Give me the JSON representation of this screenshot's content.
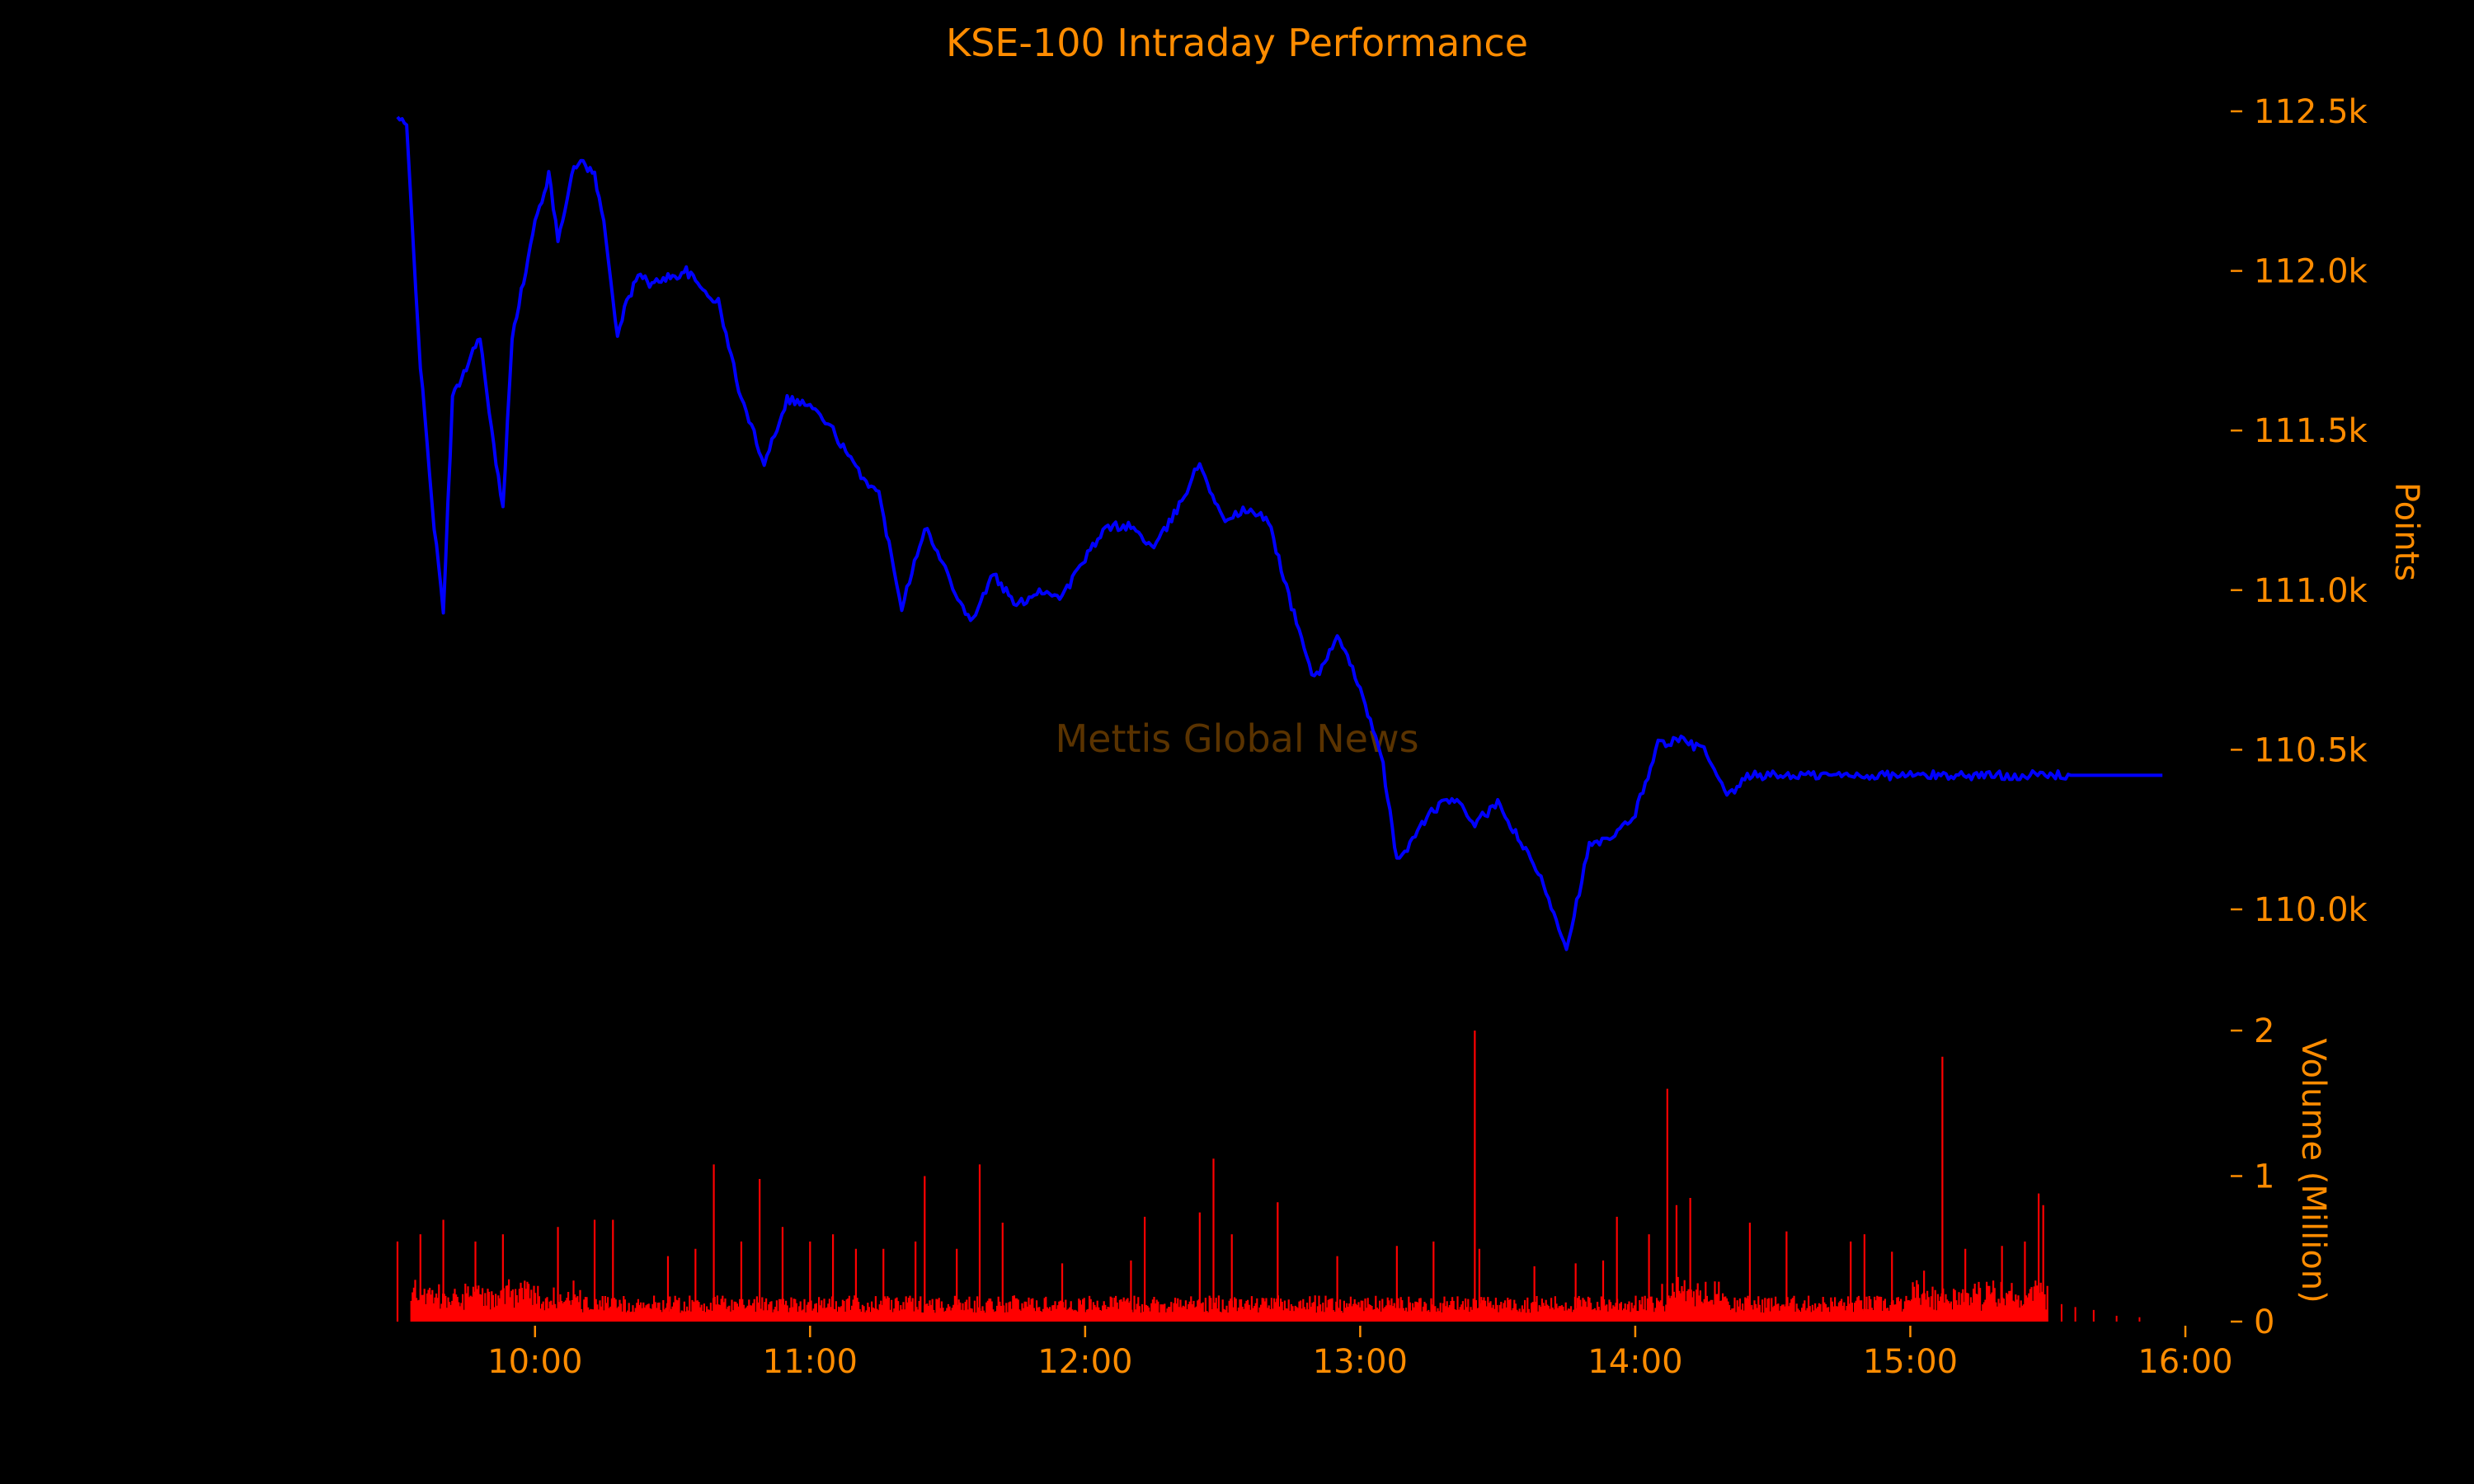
{
  "chart_data": {
    "type": "line",
    "title": "KSE-100 Intraday Performance",
    "watermark": "Mettis Global News",
    "colors": {
      "text": "#ff8c00",
      "price_line": "#0000ff",
      "volume_bars": "#ff0000",
      "background": "#000000",
      "watermark": "#5a3300"
    },
    "xaxis": {
      "label": "",
      "range": [
        "09:30",
        "16:00"
      ],
      "ticks": [
        "10:00",
        "11:00",
        "12:00",
        "13:00",
        "14:00",
        "15:00",
        "16:00"
      ]
    },
    "price": {
      "ylabel": "Points",
      "ylim": [
        109850,
        112600
      ],
      "ticks": [
        112500,
        112000,
        111500,
        111000,
        110500,
        110000
      ],
      "tick_labels": [
        "112.5k",
        "112.0k",
        "111.5k",
        "111.0k",
        "110.5k",
        "110.0k"
      ],
      "axis_side": "right",
      "series": {
        "x": [
          "09:30",
          "09:32",
          "09:35",
          "09:38",
          "09:40",
          "09:42",
          "09:45",
          "09:48",
          "09:50",
          "09:53",
          "09:55",
          "09:58",
          "10:00",
          "10:03",
          "10:05",
          "10:08",
          "10:10",
          "10:13",
          "10:15",
          "10:18",
          "10:20",
          "10:23",
          "10:25",
          "10:28",
          "10:30",
          "10:33",
          "10:36",
          "10:40",
          "10:45",
          "10:50",
          "10:55",
          "11:00",
          "11:05",
          "11:10",
          "11:15",
          "11:20",
          "11:25",
          "11:30",
          "11:35",
          "11:40",
          "11:45",
          "11:50",
          "11:55",
          "12:00",
          "12:05",
          "12:10",
          "12:15",
          "12:20",
          "12:25",
          "12:30",
          "12:35",
          "12:40",
          "12:45",
          "12:50",
          "12:55",
          "13:00",
          "13:05",
          "13:08",
          "13:12",
          "13:15",
          "13:20",
          "13:25",
          "13:30",
          "13:35",
          "13:40",
          "13:45",
          "13:50",
          "13:55",
          "14:00",
          "14:05",
          "14:10",
          "14:15",
          "14:20",
          "14:25",
          "14:30",
          "14:35",
          "14:40",
          "14:45",
          "14:50",
          "14:55",
          "15:00",
          "15:05",
          "15:10",
          "15:15",
          "15:20",
          "15:25",
          "15:30",
          "15:35",
          "15:40",
          "15:45",
          "15:50",
          "15:55"
        ],
        "y": [
          112480,
          112450,
          111700,
          111200,
          110930,
          111600,
          111700,
          111800,
          111550,
          111250,
          111800,
          112000,
          112150,
          112300,
          112100,
          112300,
          112350,
          112300,
          112150,
          111800,
          111900,
          112000,
          111950,
          111980,
          111980,
          112000,
          111950,
          111900,
          111600,
          111400,
          111600,
          111580,
          111500,
          111380,
          111300,
          110950,
          111200,
          111050,
          110900,
          111050,
          110950,
          111000,
          110980,
          111100,
          111200,
          111200,
          111130,
          111250,
          111400,
          111220,
          111250,
          111220,
          110950,
          110720,
          110850,
          110700,
          110450,
          110150,
          110230,
          110300,
          110350,
          110270,
          110330,
          110210,
          110080,
          109880,
          110200,
          110220,
          110300,
          110520,
          110530,
          110500,
          110350,
          110420,
          110420,
          110420,
          110420,
          110420,
          110420,
          110420,
          110420,
          110420,
          110420,
          110420,
          110420,
          110420,
          110420,
          110420,
          110420,
          110420,
          110420,
          110420
        ]
      }
    },
    "volume": {
      "ylabel": "Volume (Million)",
      "ylim": [
        0,
        2
      ],
      "ticks": [
        0,
        1,
        2
      ],
      "tick_labels": [
        "0",
        "1",
        "2"
      ],
      "axis_side": "right",
      "spikes": [
        {
          "x": "09:30",
          "v": 0.55
        },
        {
          "x": "09:35",
          "v": 0.6
        },
        {
          "x": "09:40",
          "v": 0.7
        },
        {
          "x": "09:47",
          "v": 0.55
        },
        {
          "x": "09:53",
          "v": 0.6
        },
        {
          "x": "10:05",
          "v": 0.65
        },
        {
          "x": "10:13",
          "v": 0.7
        },
        {
          "x": "10:17",
          "v": 0.7
        },
        {
          "x": "10:29",
          "v": 0.45
        },
        {
          "x": "10:35",
          "v": 0.5
        },
        {
          "x": "10:39",
          "v": 1.08
        },
        {
          "x": "10:45",
          "v": 0.55
        },
        {
          "x": "10:49",
          "v": 0.98
        },
        {
          "x": "10:54",
          "v": 0.65
        },
        {
          "x": "11:00",
          "v": 0.55
        },
        {
          "x": "11:05",
          "v": 0.6
        },
        {
          "x": "11:10",
          "v": 0.5
        },
        {
          "x": "11:16",
          "v": 0.5
        },
        {
          "x": "11:23",
          "v": 0.55
        },
        {
          "x": "11:25",
          "v": 1.0
        },
        {
          "x": "11:32",
          "v": 0.5
        },
        {
          "x": "11:37",
          "v": 1.08
        },
        {
          "x": "11:42",
          "v": 0.68
        },
        {
          "x": "11:55",
          "v": 0.4
        },
        {
          "x": "12:10",
          "v": 0.42
        },
        {
          "x": "12:13",
          "v": 0.72
        },
        {
          "x": "12:25",
          "v": 0.75
        },
        {
          "x": "12:28",
          "v": 1.12
        },
        {
          "x": "12:32",
          "v": 0.6
        },
        {
          "x": "12:42",
          "v": 0.82
        },
        {
          "x": "12:55",
          "v": 0.45
        },
        {
          "x": "13:08",
          "v": 0.52
        },
        {
          "x": "13:16",
          "v": 0.55
        },
        {
          "x": "13:25",
          "v": 2.0
        },
        {
          "x": "13:26",
          "v": 0.5
        },
        {
          "x": "13:38",
          "v": 0.38
        },
        {
          "x": "13:47",
          "v": 0.4
        },
        {
          "x": "13:53",
          "v": 0.42
        },
        {
          "x": "13:56",
          "v": 0.72
        },
        {
          "x": "14:03",
          "v": 0.6
        },
        {
          "x": "14:07",
          "v": 1.6
        },
        {
          "x": "14:09",
          "v": 0.8
        },
        {
          "x": "14:12",
          "v": 0.85
        },
        {
          "x": "14:25",
          "v": 0.68
        },
        {
          "x": "14:33",
          "v": 0.62
        },
        {
          "x": "14:47",
          "v": 0.55
        },
        {
          "x": "14:50",
          "v": 0.6
        },
        {
          "x": "14:56",
          "v": 0.48
        },
        {
          "x": "15:03",
          "v": 0.35
        },
        {
          "x": "15:07",
          "v": 1.82
        },
        {
          "x": "15:12",
          "v": 0.5
        },
        {
          "x": "15:20",
          "v": 0.52
        },
        {
          "x": "15:25",
          "v": 0.55
        },
        {
          "x": "15:28",
          "v": 0.88
        },
        {
          "x": "15:29",
          "v": 0.8
        }
      ],
      "after_close": [
        {
          "x": "15:33",
          "v": 0.12
        },
        {
          "x": "15:36",
          "v": 0.1
        },
        {
          "x": "15:40",
          "v": 0.08
        },
        {
          "x": "15:45",
          "v": 0.04
        },
        {
          "x": "15:50",
          "v": 0.03
        }
      ]
    },
    "grid": false,
    "legend": "none"
  }
}
